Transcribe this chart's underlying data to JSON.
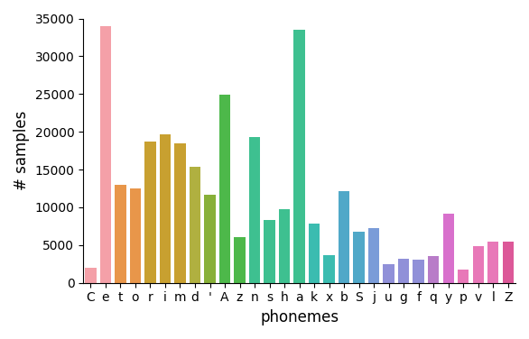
{
  "phonemes": [
    "C",
    "e",
    "t",
    "o",
    "r",
    "i",
    "m",
    "d",
    "'",
    "A",
    "z",
    "n",
    "s",
    "h",
    "a",
    "k",
    "x",
    "b",
    "S",
    "j",
    "u",
    "g",
    "f",
    "q",
    "y",
    "p",
    "v",
    "l",
    "Z"
  ],
  "values": [
    2000,
    34000,
    13000,
    12500,
    18700,
    19700,
    18500,
    15400,
    11700,
    24900,
    6000,
    19300,
    8300,
    9800,
    33500,
    7800,
    3700,
    12100,
    6800,
    7200,
    2500,
    3200,
    3100,
    3600,
    9200,
    1700,
    4900,
    5500,
    5500
  ],
  "colors": [
    "#f4a0a8",
    "#f4a0a8",
    "#e8964a",
    "#e8964a",
    "#c8a030",
    "#c8a030",
    "#c8a030",
    "#b0b040",
    "#88b038",
    "#4db84a",
    "#4db84a",
    "#3ec090",
    "#3ec090",
    "#3ec090",
    "#3ec090",
    "#3bbcb0",
    "#3bbcb0",
    "#50a8c8",
    "#50a8c8",
    "#7a9cd8",
    "#9090d8",
    "#9090d8",
    "#9090d8",
    "#b87cc8",
    "#d870cc",
    "#e878b8",
    "#e878b8",
    "#e878b8",
    "#dc5898"
  ],
  "ylabel": "# samples",
  "xlabel": "phonemes",
  "ylim": [
    0,
    35000
  ],
  "yticks": [
    0,
    5000,
    10000,
    15000,
    20000,
    25000,
    30000,
    35000
  ],
  "axis_label_fontsize": 12,
  "tick_fontsize": 10,
  "background_color": "#ffffff"
}
